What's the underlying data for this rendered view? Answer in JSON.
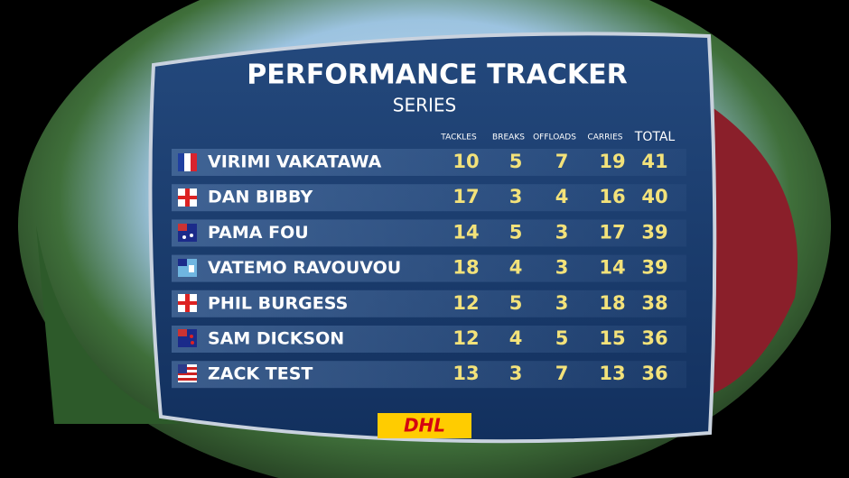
{
  "header": {
    "title": "PERFORMANCE TRACKER",
    "subtitle": "SERIES"
  },
  "table": {
    "columns": [
      "TACKLES",
      "BREAKS",
      "OFFLOADS",
      "CARRIES",
      "TOTAL"
    ],
    "rows": [
      [
        "VIRIMI VAKATAWA",
        10,
        5,
        7,
        19,
        41
      ],
      [
        "DAN BIBBY",
        17,
        3,
        4,
        16,
        40
      ],
      [
        "PAMA FOU",
        14,
        5,
        3,
        17,
        39
      ],
      [
        "VATEMO RAVOUVOU",
        18,
        4,
        3,
        14,
        39
      ],
      [
        "PHIL BURGESS",
        12,
        5,
        3,
        18,
        38
      ],
      [
        "SAM DICKSON",
        12,
        4,
        5,
        15,
        36
      ],
      [
        "ZACK TEST",
        13,
        3,
        7,
        13,
        36
      ]
    ]
  },
  "sponsor": "DHL"
}
